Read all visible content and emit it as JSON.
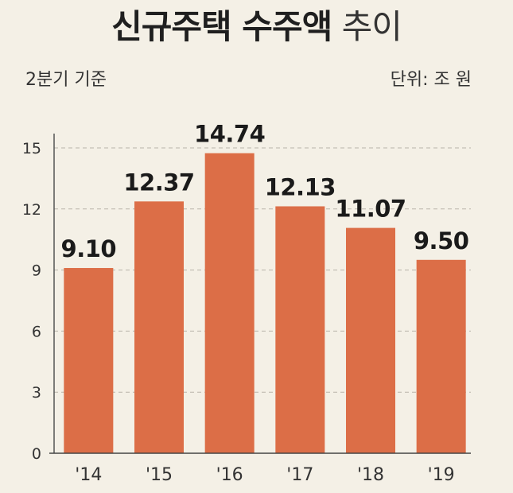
{
  "header": {
    "title_bold": "신규주택 수주액",
    "title_light": "추이",
    "subtitle": "2분기 기준",
    "unit": "단위: 조 원"
  },
  "colors": {
    "bar": "#dc6e47",
    "background": "#f4f0e6",
    "grid": "#b9b4aa"
  },
  "chart_data": {
    "type": "bar",
    "title": "신규주택 수주액 추이",
    "subtitle": "2분기 기준",
    "unit": "단위: 조 원",
    "categories": [
      "'14",
      "'15",
      "'16",
      "'17",
      "'18",
      "'19"
    ],
    "values": [
      9.1,
      12.37,
      14.74,
      12.13,
      11.07,
      9.5
    ],
    "value_labels": [
      "9.10",
      "12.37",
      "14.74",
      "12.13",
      "11.07",
      "9.50"
    ],
    "yticks": [
      0,
      3,
      6,
      9,
      12,
      15
    ],
    "ylim": [
      0,
      15
    ],
    "grid": true,
    "xlabel": "",
    "ylabel": ""
  }
}
